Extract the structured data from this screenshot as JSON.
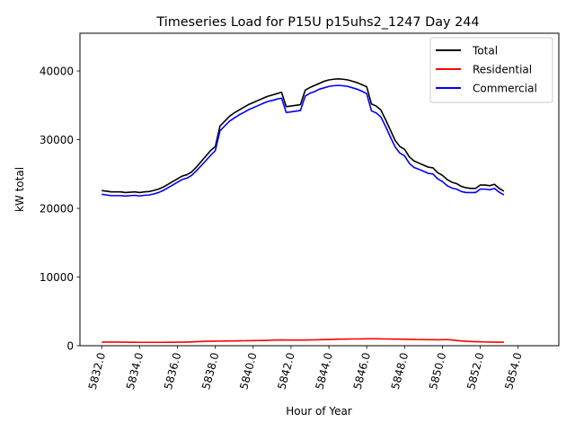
{
  "chart_data": {
    "type": "line",
    "title": "Timeseries Load for P15U p15uhs2_1247  Day 244",
    "xlabel": "Hour of Year",
    "ylabel": "kW total",
    "xlim": [
      5830.85,
      5856.15
    ],
    "ylim": [
      0,
      45500
    ],
    "xticks": [
      5832,
      5834,
      5836,
      5838,
      5840,
      5842,
      5844,
      5846,
      5848,
      5850,
      5852,
      5854
    ],
    "xtick_labels": [
      "5832.0",
      "5834.0",
      "5836.0",
      "5838.0",
      "5840.0",
      "5842.0",
      "5844.0",
      "5846.0",
      "5848.0",
      "5850.0",
      "5852.0",
      "5854.0"
    ],
    "yticks": [
      0,
      10000,
      20000,
      30000,
      40000
    ],
    "ytick_labels": [
      "0",
      "10000",
      "20000",
      "30000",
      "40000"
    ],
    "legend_position": "top-right",
    "x_start": 5832,
    "x_step": 0.25,
    "series": [
      {
        "name": "Total",
        "color": "#000000",
        "values": [
          22600,
          22500,
          22400,
          22400,
          22400,
          22300,
          22350,
          22400,
          22300,
          22400,
          22450,
          22600,
          22800,
          23100,
          23500,
          23900,
          24300,
          24700,
          24900,
          25300,
          26000,
          26800,
          27600,
          28400,
          29000,
          32000,
          32700,
          33400,
          33900,
          34300,
          34700,
          35100,
          35400,
          35700,
          36000,
          36300,
          36500,
          36700,
          36900,
          34800,
          34900,
          35000,
          35100,
          37200,
          37600,
          37900,
          38200,
          38500,
          38700,
          38800,
          38850,
          38800,
          38700,
          38500,
          38300,
          38000,
          37700,
          35200,
          34900,
          34300,
          32900,
          31400,
          29900,
          29000,
          28600,
          27500,
          26900,
          26600,
          26300,
          26000,
          25900,
          25200,
          24800,
          24200,
          23800,
          23600,
          23200,
          23000,
          22900,
          22900,
          23400,
          23400,
          23300,
          23500,
          22900,
          22500
        ]
      },
      {
        "name": "Residential",
        "color": "#ff0000",
        "values": [
          520,
          530,
          540,
          530,
          520,
          510,
          500,
          500,
          490,
          490,
          490,
          490,
          490,
          490,
          500,
          500,
          510,
          520,
          530,
          550,
          580,
          610,
          640,
          650,
          660,
          670,
          680,
          690,
          700,
          710,
          720,
          730,
          740,
          750,
          760,
          780,
          800,
          820,
          840,
          830,
          820,
          820,
          820,
          830,
          840,
          850,
          870,
          890,
          910,
          930,
          950,
          960,
          970,
          980,
          980,
          990,
          1000,
          1000,
          1000,
          990,
          980,
          970,
          960,
          950,
          940,
          930,
          910,
          900,
          890,
          880,
          870,
          860,
          880,
          900,
          830,
          760,
          700,
          650,
          610,
          580,
          560,
          540,
          530,
          520,
          510,
          500
        ]
      },
      {
        "name": "Commercial",
        "color": "#0000ff",
        "values": [
          22050,
          21950,
          21850,
          21850,
          21850,
          21800,
          21850,
          21900,
          21800,
          21900,
          21950,
          22100,
          22300,
          22600,
          23000,
          23400,
          23800,
          24200,
          24400,
          24800,
          25450,
          26200,
          26950,
          27700,
          28400,
          31300,
          32000,
          32700,
          33150,
          33600,
          33950,
          34350,
          34650,
          34950,
          35250,
          35550,
          35700,
          35900,
          36050,
          33950,
          34050,
          34150,
          34250,
          36350,
          36750,
          37000,
          37350,
          37550,
          37750,
          37850,
          37900,
          37850,
          37750,
          37550,
          37350,
          37050,
          36700,
          34200,
          33900,
          33300,
          31900,
          30400,
          28950,
          28050,
          27650,
          26550,
          25950,
          25700,
          25400,
          25100,
          25000,
          24300,
          23900,
          23300,
          22950,
          22800,
          22450,
          22300,
          22300,
          22300,
          22800,
          22800,
          22700,
          22900,
          22350,
          21950
        ]
      }
    ]
  }
}
